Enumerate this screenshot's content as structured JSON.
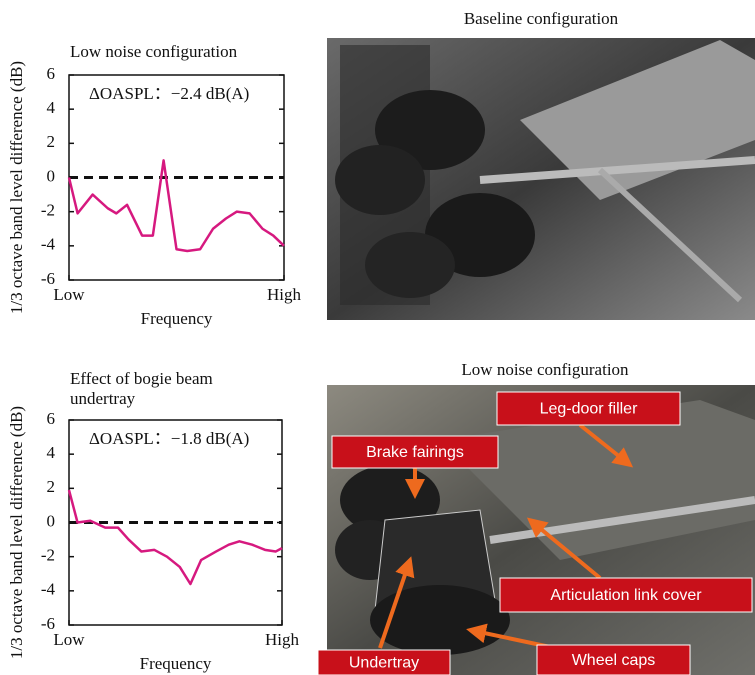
{
  "chart_data": [
    {
      "type": "line",
      "title": "Low noise configuration",
      "ylabel": "1/3 octave band level difference (dB)",
      "xlabel": "Frequency",
      "annotation": "ΔOASPL：−2.4 dB(A)",
      "color": "#d6197f",
      "reference_line": 0,
      "x": [
        0,
        0.04,
        0.11,
        0.18,
        0.22,
        0.27,
        0.34,
        0.39,
        0.44,
        0.5,
        0.55,
        0.61,
        0.67,
        0.73,
        0.78,
        0.84,
        0.9,
        0.95,
        1
      ],
      "values": [
        0,
        -2.1,
        -1,
        -1.8,
        -2.1,
        -1.6,
        -3.4,
        -3.4,
        1,
        -4.2,
        -4.3,
        -4.2,
        -3,
        -2.4,
        -2,
        -2.1,
        -3,
        -3.4,
        -4
      ],
      "xlim": [
        0,
        1
      ],
      "xticks": [
        {
          "value": 0,
          "label": "Low"
        },
        {
          "value": 1,
          "label": "High"
        }
      ],
      "ylim": [
        -6,
        6
      ],
      "yticks": [
        -6,
        -4,
        -2,
        0,
        2,
        4,
        6
      ]
    },
    {
      "type": "line",
      "title": "Effect of bogie beam undertray",
      "ylabel": "1/3 octave band level difference (dB)",
      "xlabel": "Frequency",
      "annotation": "ΔOASPL：−1.8 dB(A)",
      "color": "#d6197f",
      "reference_line": 0,
      "x": [
        0,
        0.04,
        0.1,
        0.17,
        0.23,
        0.28,
        0.34,
        0.4,
        0.46,
        0.52,
        0.57,
        0.62,
        0.69,
        0.75,
        0.8,
        0.86,
        0.92,
        0.97,
        1
      ],
      "values": [
        1.9,
        0,
        0.1,
        -0.3,
        -0.3,
        -1,
        -1.7,
        -1.6,
        -2,
        -2.6,
        -3.6,
        -2.2,
        -1.7,
        -1.3,
        -1.1,
        -1.3,
        -1.6,
        -1.7,
        -1.5
      ],
      "xlim": [
        0,
        1
      ],
      "xticks": [
        {
          "value": 0,
          "label": "Low"
        },
        {
          "value": 1,
          "label": "High"
        }
      ],
      "ylim": [
        -6,
        6
      ],
      "yticks": [
        -6,
        -4,
        -2,
        0,
        2,
        4,
        6
      ]
    }
  ],
  "photos": [
    {
      "title": "Baseline configuration"
    },
    {
      "title": "Low noise configuration",
      "callouts": [
        "Leg-door filler",
        "Brake fairings",
        "Articulation link cover",
        "Undertray",
        "Wheel caps"
      ]
    }
  ]
}
